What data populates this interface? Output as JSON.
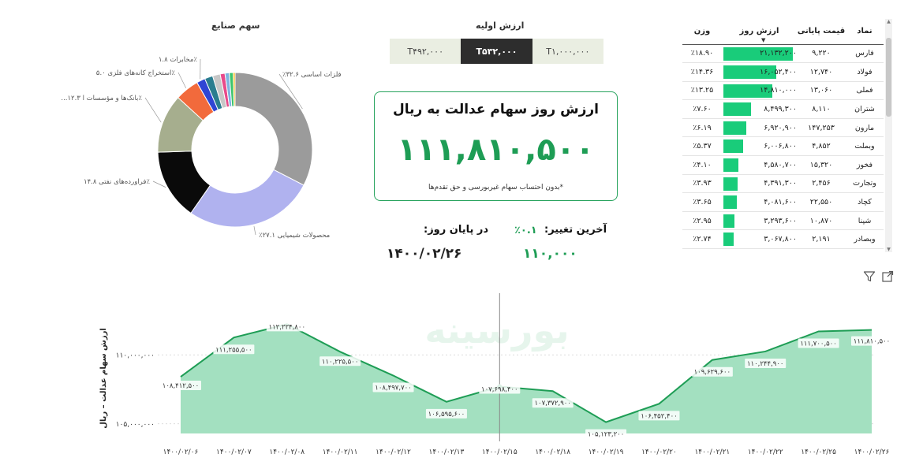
{
  "donut": {
    "title": "سهم صنایع",
    "slices": [
      {
        "value": 32.6,
        "color": "#9b9b9b",
        "label": "٪۳۲.۶ فلزات اساسی"
      },
      {
        "value": 27.1,
        "color": "#b0b2ef",
        "label": "٪۲۷.۱ محصولات شیمیایی"
      },
      {
        "value": 14.8,
        "color": "#0a0a0a",
        "label": "فراورده‌های نفتی ۱۴.۸٪"
      },
      {
        "value": 12.3,
        "color": "#a6ae8e",
        "label": "...بانک‌ها و مؤسسات ا ۱۲.۳٪"
      },
      {
        "value": 5.0,
        "color": "#f26a3c",
        "label": "استخراج کانه‌های فلزی ۵.۰٪"
      },
      {
        "value": 1.8,
        "color": "#2f45d4",
        "label": "مخابرات ۱.۸٪"
      },
      {
        "value": 1.7,
        "color": "#2a7d8f",
        "label": ""
      },
      {
        "value": 1.6,
        "color": "#c7c7c7",
        "label": ""
      },
      {
        "value": 1.0,
        "color": "#e84a8a",
        "label": ""
      },
      {
        "value": 0.9,
        "color": "#7fb3e0",
        "label": ""
      },
      {
        "value": 0.8,
        "color": "#3bc46c",
        "label": ""
      },
      {
        "value": 0.4,
        "color": "#f4b400",
        "label": ""
      }
    ]
  },
  "initial_value": {
    "title": "ارزش اولیه",
    "options": [
      "T۴۹۲,۰۰۰",
      "T۵۳۲,۰۰۰",
      "T۱,۰۰۰,۰۰۰"
    ],
    "selected_index": 1
  },
  "card": {
    "title": "ارزش روز سهام عدالت به ریال",
    "value": "۱۱۱,۸۱۰,۵۰۰",
    "note": "*بدون احتساب سهام غیربورسی و حق تقدم‌ها"
  },
  "stats": {
    "change_label": "آخرین تغییر:",
    "change_pct": "٪۰.۱",
    "date_label": "در پایان روز:",
    "last_value": "۱۱۰,۰۰۰",
    "last_date": "۱۴۰۰/۰۲/۲۶"
  },
  "table": {
    "headers": {
      "symbol": "نماد",
      "price": "قیمت پایانی",
      "value": "ارزش روز",
      "weight": "وزن"
    },
    "sort_arrow": "▼",
    "rows": [
      {
        "symbol": "فارس",
        "price": "۹,۲۲۰",
        "value": "۲۱,۱۳۲,۲۰۰",
        "value_num": 21132200,
        "weight": "٪۱۸.۹۰",
        "price_red": false
      },
      {
        "symbol": "فولاد",
        "price": "۱۲,۷۴۰",
        "value": "۱۶,۰۵۲,۴۰۰",
        "value_num": 16052400,
        "weight": "٪۱۴.۳۶",
        "price_red": false
      },
      {
        "symbol": "فملی",
        "price": "۱۳,۰۶۰",
        "value": "۱۴,۸۱۰,۰۰۰",
        "value_num": 14810000,
        "weight": "٪۱۳.۲۵",
        "price_red": false
      },
      {
        "symbol": "شتران",
        "price": "۸,۱۱۰",
        "value": "۸,۴۹۹,۳۰۰",
        "value_num": 8499300,
        "weight": "٪۷.۶۰",
        "price_red": false
      },
      {
        "symbol": "مارون",
        "price": "۱۴۷,۲۵۳",
        "value": "۶,۹۲۰,۹۰۰",
        "value_num": 6920900,
        "weight": "٪۶.۱۹",
        "price_red": false
      },
      {
        "symbol": "وبملت",
        "price": "۴,۸۵۲",
        "value": "۶,۰۰۶,۸۰۰",
        "value_num": 6006800,
        "weight": "٪۵.۳۷",
        "price_red": true
      },
      {
        "symbol": "فخوز",
        "price": "۱۵,۳۲۰",
        "value": "۴,۵۸۰,۷۰۰",
        "value_num": 4580700,
        "weight": "٪۴.۱۰",
        "price_red": false
      },
      {
        "symbol": "وتجارت",
        "price": "۲,۴۵۶",
        "value": "۴,۳۹۱,۳۰۰",
        "value_num": 4391300,
        "weight": "٪۳.۹۳",
        "price_red": false
      },
      {
        "symbol": "کچاد",
        "price": "۲۲,۵۵۰",
        "value": "۴,۰۸۱,۶۰۰",
        "value_num": 4081600,
        "weight": "٪۳.۶۵",
        "price_red": false
      },
      {
        "symbol": "شپنا",
        "price": "۱۰,۸۷۰",
        "value": "۳,۲۹۳,۶۰۰",
        "value_num": 3293600,
        "weight": "٪۲.۹۵",
        "price_red": false
      },
      {
        "symbol": "وبصادر",
        "price": "۲,۱۹۱",
        "value": "۳,۰۶۷,۸۰۰",
        "value_num": 3067800,
        "weight": "٪۲.۷۴",
        "price_red": false
      }
    ]
  },
  "icons": {
    "filter": "filter-icon",
    "expand": "expand-icon"
  },
  "chart_data": {
    "type": "area",
    "ylabel": "ارزش سهام عدالت – ریال",
    "ylim": [
      104300000,
      113900000
    ],
    "y_ticks": [
      105000000,
      110000000
    ],
    "y_tick_labels": [
      "۱۰۵,۰۰۰,۰۰۰",
      "۱۱۰,۰۰۰,۰۰۰"
    ],
    "categories": [
      "۱۴۰۰/۰۲/۰۶",
      "۱۴۰۰/۰۲/۰۷",
      "۱۴۰۰/۰۲/۰۸",
      "۱۴۰۰/۰۲/۱۱",
      "۱۴۰۰/۰۲/۱۲",
      "۱۴۰۰/۰۲/۱۳",
      "۱۴۰۰/۰۲/۱۵",
      "۱۴۰۰/۰۲/۱۸",
      "۱۴۰۰/۰۲/۱۹",
      "۱۴۰۰/۰۲/۲۰",
      "۱۴۰۰/۰۲/۲۱",
      "۱۴۰۰/۰۲/۲۲",
      "۱۴۰۰/۰۲/۲۵",
      "۱۴۰۰/۰۲/۲۶"
    ],
    "values": [
      108412500,
      111255500,
      112224800,
      110225500,
      108497700,
      106595600,
      107698400,
      107372900,
      105123200,
      106452400,
      109629600,
      110244900,
      111700500,
      111810500
    ],
    "point_labels": [
      "۱۰۸,۴۱۲,۵۰۰",
      "۱۱۱,۲۵۵,۵۰۰",
      "۱۱۲,۲۲۴,۸۰۰",
      "۱۱۰,۲۲۵,۵۰۰",
      "۱۰۸,۴۹۷,۷۰۰",
      "۱۰۶,۵۹۵,۶۰۰",
      "۱۰۷,۶۹۸,۴۰۰",
      "۱۰۷,۳۷۲,۹۰۰",
      "۱۰۵,۱۲۳,۲۰۰",
      "۱۰۶,۴۵۲,۴۰۰",
      "۱۰۹,۶۲۹,۶۰۰",
      "۱۱۰,۲۴۴,۹۰۰",
      "۱۱۱,۷۰۰,۵۰۰",
      "۱۱۱,۸۱۰,۵۰۰"
    ],
    "highlight_index": 6,
    "line_color": "#1e9d55",
    "fill_color": "#a3e0c0",
    "grid": true
  }
}
